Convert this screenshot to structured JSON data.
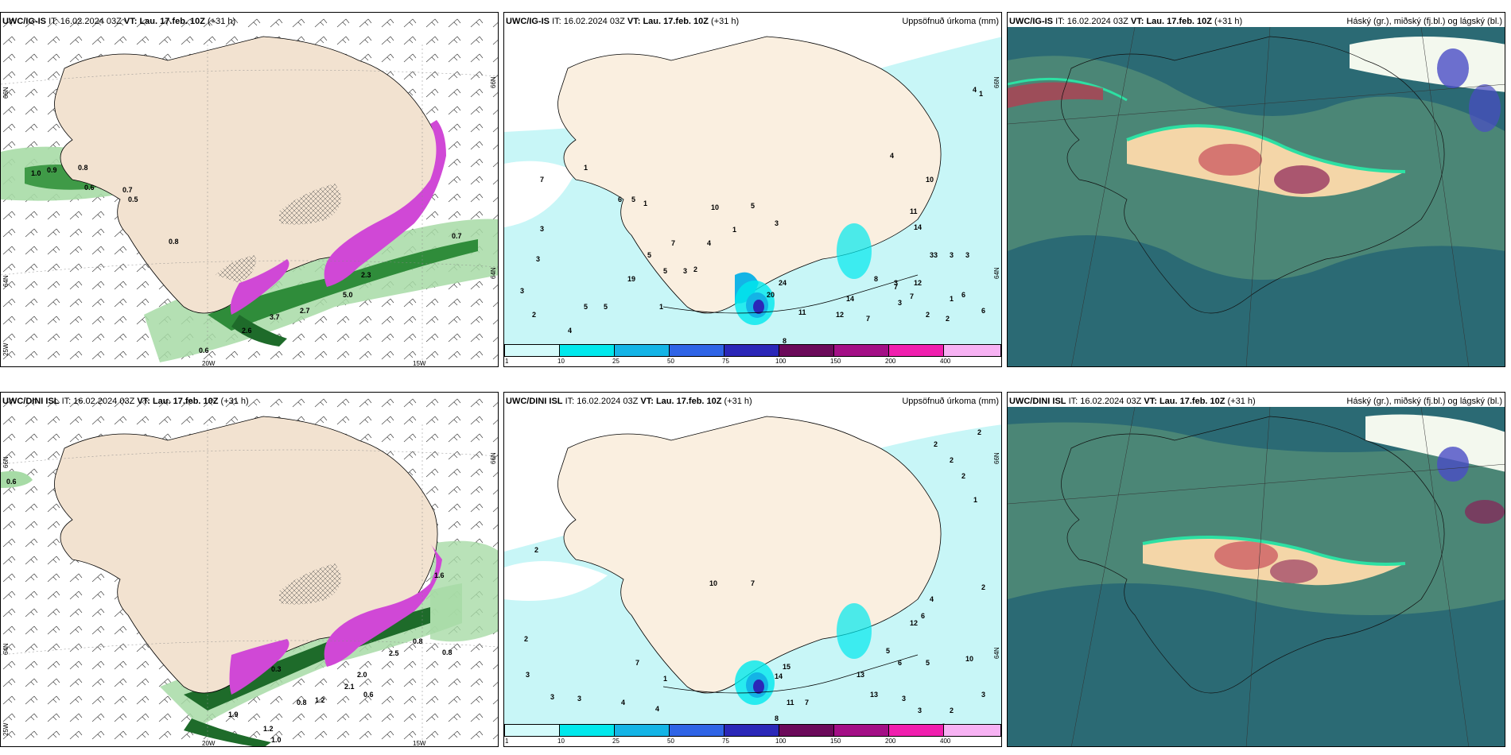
{
  "panels": [
    {
      "id": "p1",
      "model": "UWC/IG-IS",
      "right_title": ""
    },
    {
      "id": "p2",
      "model": "UWC/IG-IS",
      "right_title": "Uppsöfnuð úrkoma (mm)"
    },
    {
      "id": "p3",
      "model": "UWC/IG-IS",
      "right_title": "Háský (gr.), miðský (fj.bl.) og lágský (bl.)"
    },
    {
      "id": "p4",
      "model": "UWC/DINI ISL",
      "right_title": ""
    },
    {
      "id": "p5",
      "model": "UWC/DINI ISL",
      "right_title": "Uppsöfnuð úrkoma (mm)"
    },
    {
      "id": "p6",
      "model": "UWC/DINI ISL",
      "right_title": "Háský (gr.), miðský (fj.bl.) og lágský (bl.)"
    }
  ],
  "header": {
    "it_label": "IT:",
    "it_value": "16.02.2024 03Z",
    "vt_label": "VT:",
    "vt_value": "Lau. 17.feb. 10Z",
    "lead": "(+31 h)"
  },
  "axes": {
    "lat_66": "66N",
    "lat_64": "64N",
    "lon_20": "20W",
    "lon_15": "15W",
    "lon_25": "25W"
  },
  "colorbar": {
    "ticks": [
      "1",
      "10",
      "25",
      "50",
      "75",
      "100",
      "150",
      "200",
      "400"
    ],
    "colors": [
      "#d4fbfb",
      "#00e8ec",
      "#14b4e6",
      "#2f64e6",
      "#2b27b8",
      "#6b0a5a",
      "#a30f86",
      "#f01fae",
      "#f7b2f3"
    ]
  },
  "p1_labels": [
    "1.0",
    "0.9",
    "0.8",
    "0.6",
    "0.7",
    "0.5",
    "0.8",
    "0.7",
    "5.0",
    "3.7",
    "2.7",
    "2.6",
    "0.6",
    "2.3"
  ],
  "p2_labels": [
    "7",
    "1",
    "3",
    "3",
    "3",
    "2",
    "4",
    "5",
    "5",
    "1",
    "19",
    "6",
    "5",
    "1",
    "7",
    "5",
    "3",
    "5",
    "2",
    "4",
    "10",
    "5",
    "3",
    "1",
    "24",
    "20",
    "11",
    "8",
    "12",
    "7",
    "14",
    "8",
    "3",
    "12",
    "3",
    "7",
    "7",
    "3",
    "6",
    "1",
    "11",
    "14",
    "4",
    "10",
    "1",
    "4",
    "3",
    "3",
    "3",
    "2",
    "2",
    "6"
  ],
  "p4_labels": [
    "0.6",
    "0.3",
    "1.2",
    "0.8",
    "1.9",
    "1.2",
    "1.0",
    "0.6",
    "2.0",
    "2.5",
    "0.8",
    "0.8",
    "2.1",
    "1.6"
  ],
  "p5_labels": [
    "2",
    "2",
    "7",
    "3",
    "3",
    "3",
    "4",
    "4",
    "1",
    "10",
    "7",
    "15",
    "14",
    "11",
    "7",
    "8",
    "13",
    "12",
    "6",
    "4",
    "5",
    "6",
    "5",
    "13",
    "3",
    "3",
    "2",
    "1",
    "2",
    "2",
    "2",
    "2",
    "2",
    "10",
    "3",
    "2"
  ]
}
